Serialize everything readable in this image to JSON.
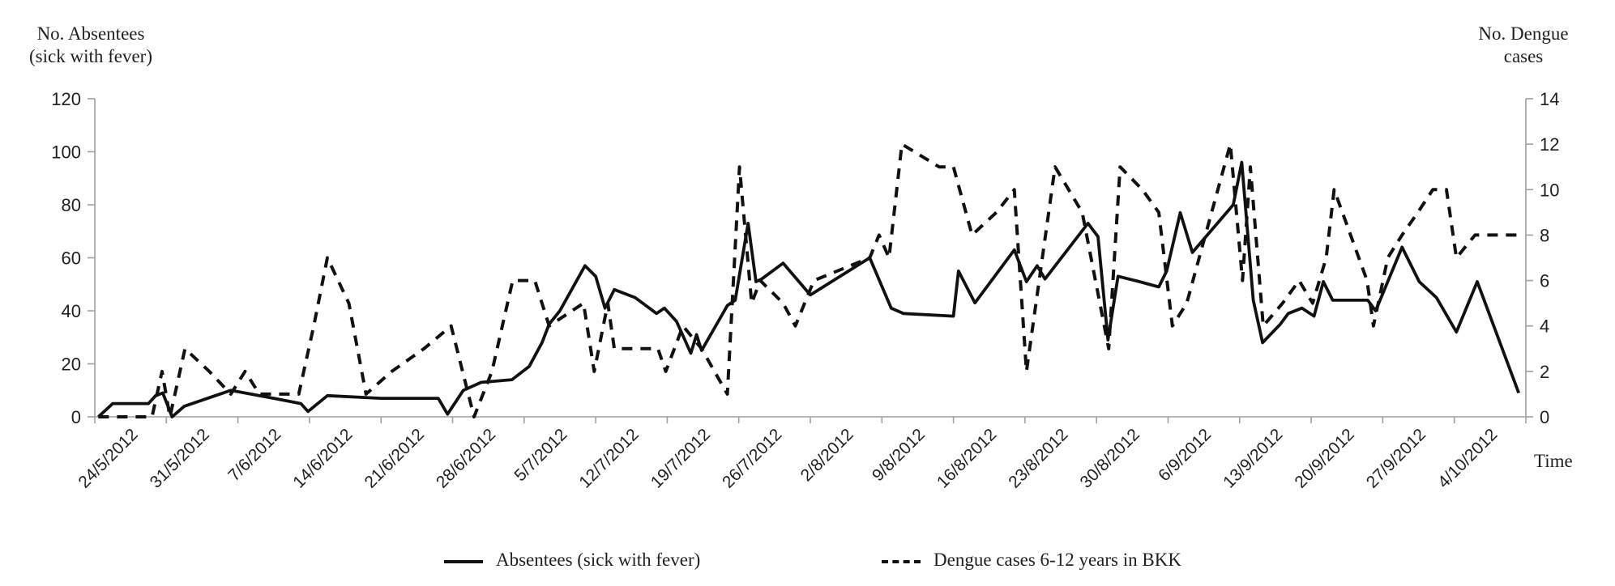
{
  "chart": {
    "left_axis_title_line1": "No. Absentees",
    "left_axis_title_line2": "(sick with fever)",
    "right_axis_title_line1": "No. Dengue",
    "right_axis_title_line2": "cases",
    "x_axis_title": "Time"
  },
  "legend": {
    "items": [
      {
        "label": "Absentees (sick with fever)",
        "line_style": "solid"
      },
      {
        "label": "Dengue cases 6-12 years in BKK",
        "line_style": "dashed"
      }
    ]
  },
  "colors": {
    "line": "#111111",
    "axis": "#a0a0a0",
    "text": "#1f1f1f",
    "background": "#ffffff"
  },
  "chart_data": {
    "type": "line",
    "title": "",
    "xlabel": "Time",
    "grid": "off",
    "legend_position": "bottom",
    "x_categories": [
      "24/5/2012",
      "31/5/2012",
      "7/6/2012",
      "14/6/2012",
      "21/6/2012",
      "28/6/2012",
      "5/7/2012",
      "12/7/2012",
      "19/7/2012",
      "26/7/2012",
      "2/8/2012",
      "9/8/2012",
      "16/8/2012",
      "23/8/2012",
      "30/8/2012",
      "6/9/2012",
      "13/9/2012",
      "20/9/2012",
      "27/9/2012",
      "4/10/2012"
    ],
    "x_note": "point x values are week offsets from the 24/5/2012 category; one week equals one category width; daily data plotted within weeks",
    "left_axis": {
      "label": "No. Absentees (sick with fever)",
      "min": 0,
      "max": 120,
      "tick_step": 20,
      "ticks": [
        "0",
        "20",
        "40",
        "60",
        "80",
        "100",
        "120"
      ]
    },
    "right_axis": {
      "label": "No. Dengue cases",
      "min": 0,
      "max": 14,
      "tick_step": 2,
      "ticks": [
        "0",
        "2",
        "4",
        "6",
        "8",
        "10",
        "12",
        "14"
      ]
    },
    "series": [
      {
        "name": "Absentees (sick with fever)",
        "axis": "left",
        "line_style": "solid",
        "points": [
          [
            0.05,
            0
          ],
          [
            0.25,
            5
          ],
          [
            0.75,
            5
          ],
          [
            0.85,
            8
          ],
          [
            0.95,
            9
          ],
          [
            1.08,
            0
          ],
          [
            1.25,
            4
          ],
          [
            1.9,
            10
          ],
          [
            2.5,
            7
          ],
          [
            2.88,
            5
          ],
          [
            2.98,
            2
          ],
          [
            3.25,
            8
          ],
          [
            4.0,
            7
          ],
          [
            4.8,
            7
          ],
          [
            4.93,
            1
          ],
          [
            5.15,
            10
          ],
          [
            5.4,
            13
          ],
          [
            5.83,
            14
          ],
          [
            6.07,
            19
          ],
          [
            6.25,
            28
          ],
          [
            6.35,
            35
          ],
          [
            6.5,
            40
          ],
          [
            6.85,
            57
          ],
          [
            7.0,
            53
          ],
          [
            7.13,
            41
          ],
          [
            7.26,
            48
          ],
          [
            7.55,
            45
          ],
          [
            7.85,
            39
          ],
          [
            7.96,
            41
          ],
          [
            8.13,
            36
          ],
          [
            8.33,
            24
          ],
          [
            8.41,
            31
          ],
          [
            8.48,
            25
          ],
          [
            8.84,
            42
          ],
          [
            8.95,
            44
          ],
          [
            9.13,
            73
          ],
          [
            9.24,
            51
          ],
          [
            9.32,
            52
          ],
          [
            9.62,
            58
          ],
          [
            10.0,
            46
          ],
          [
            10.83,
            60
          ],
          [
            11.13,
            41
          ],
          [
            11.3,
            39
          ],
          [
            12.0,
            38
          ],
          [
            12.07,
            55
          ],
          [
            12.3,
            43
          ],
          [
            12.85,
            63
          ],
          [
            13.02,
            51
          ],
          [
            13.17,
            57
          ],
          [
            13.28,
            52
          ],
          [
            13.88,
            73
          ],
          [
            14.02,
            68
          ],
          [
            14.16,
            29
          ],
          [
            14.3,
            53
          ],
          [
            14.6,
            51
          ],
          [
            14.87,
            49
          ],
          [
            14.98,
            55
          ],
          [
            15.17,
            77
          ],
          [
            15.34,
            62
          ],
          [
            15.91,
            80
          ],
          [
            16.03,
            96
          ],
          [
            16.19,
            44
          ],
          [
            16.32,
            28
          ],
          [
            16.57,
            35
          ],
          [
            16.68,
            39
          ],
          [
            16.87,
            41
          ],
          [
            17.04,
            38
          ],
          [
            17.17,
            51
          ],
          [
            17.3,
            44
          ],
          [
            17.79,
            44
          ],
          [
            17.9,
            40
          ],
          [
            18.27,
            64
          ],
          [
            18.51,
            51
          ],
          [
            18.75,
            45
          ],
          [
            19.03,
            32
          ],
          [
            19.32,
            51
          ],
          [
            19.9,
            9
          ]
        ]
      },
      {
        "name": "Dengue cases 6-12 years in BKK",
        "axis": "right",
        "line_style": "dashed",
        "points": [
          [
            0.05,
            0
          ],
          [
            0.8,
            0
          ],
          [
            0.94,
            2
          ],
          [
            1.05,
            0
          ],
          [
            1.26,
            3
          ],
          [
            1.6,
            2
          ],
          [
            1.9,
            1
          ],
          [
            2.1,
            2
          ],
          [
            2.3,
            1
          ],
          [
            2.85,
            1
          ],
          [
            3.06,
            4
          ],
          [
            3.25,
            7
          ],
          [
            3.55,
            5
          ],
          [
            3.79,
            1
          ],
          [
            4.15,
            2
          ],
          [
            4.6,
            3
          ],
          [
            4.98,
            4
          ],
          [
            5.22,
            1
          ],
          [
            5.3,
            0
          ],
          [
            5.55,
            2
          ],
          [
            5.84,
            6
          ],
          [
            6.15,
            6
          ],
          [
            6.35,
            4
          ],
          [
            6.83,
            5
          ],
          [
            6.98,
            2
          ],
          [
            7.17,
            5
          ],
          [
            7.26,
            3
          ],
          [
            7.87,
            3
          ],
          [
            7.98,
            2
          ],
          [
            8.22,
            4
          ],
          [
            8.48,
            3
          ],
          [
            8.84,
            1
          ],
          [
            9.01,
            11
          ],
          [
            9.18,
            5
          ],
          [
            9.3,
            6
          ],
          [
            9.62,
            5
          ],
          [
            9.79,
            4
          ],
          [
            10.05,
            6
          ],
          [
            10.83,
            7
          ],
          [
            10.96,
            8
          ],
          [
            11.1,
            7
          ],
          [
            11.28,
            12
          ],
          [
            11.8,
            11
          ],
          [
            12.0,
            11
          ],
          [
            12.26,
            8
          ],
          [
            12.6,
            9
          ],
          [
            12.85,
            10
          ],
          [
            13.02,
            2
          ],
          [
            13.42,
            11
          ],
          [
            13.8,
            9
          ],
          [
            14.17,
            3
          ],
          [
            14.33,
            11
          ],
          [
            14.64,
            10
          ],
          [
            14.87,
            9
          ],
          [
            15.06,
            4
          ],
          [
            15.26,
            5
          ],
          [
            15.87,
            12
          ],
          [
            16.04,
            6
          ],
          [
            16.15,
            11
          ],
          [
            16.33,
            4
          ],
          [
            16.6,
            5
          ],
          [
            16.83,
            6
          ],
          [
            17.02,
            5
          ],
          [
            17.21,
            7
          ],
          [
            17.32,
            10
          ],
          [
            17.55,
            8
          ],
          [
            17.78,
            6
          ],
          [
            17.87,
            4
          ],
          [
            18.07,
            7
          ],
          [
            18.27,
            8
          ],
          [
            18.49,
            9
          ],
          [
            18.7,
            10
          ],
          [
            18.89,
            10
          ],
          [
            19.03,
            7
          ],
          [
            19.29,
            8
          ],
          [
            19.92,
            8
          ]
        ]
      }
    ]
  }
}
